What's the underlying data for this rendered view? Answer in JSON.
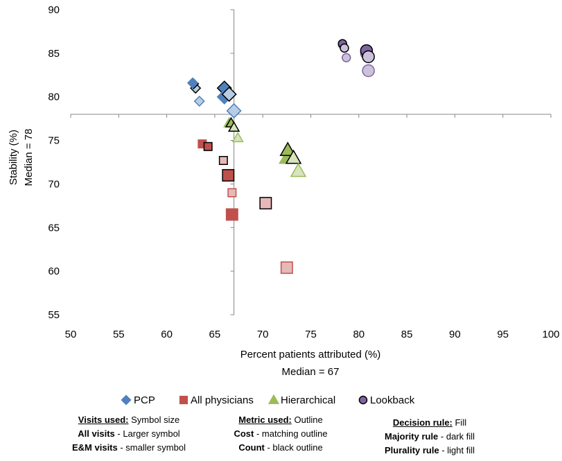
{
  "chart_data": {
    "type": "scatter",
    "xlabel": "Percent patients attributed (%)",
    "xlabel2": "Median = 67",
    "ylabel": "Stability (%)",
    "ylabel2": "Median = 78",
    "xlim": [
      50,
      100
    ],
    "ylim": [
      55,
      90
    ],
    "xticks": [
      50,
      55,
      60,
      65,
      70,
      75,
      80,
      85,
      90,
      95,
      100
    ],
    "yticks": [
      55,
      60,
      65,
      70,
      75,
      80,
      85,
      90
    ],
    "median_x": 67,
    "median_y": 78,
    "grid": false,
    "legend_position": "bottom",
    "colors": {
      "PCP": {
        "dark": "#4F81BD",
        "light": "#B8CCE4",
        "edge": "#4F81BD"
      },
      "All physicians": {
        "dark": "#C0504D",
        "light": "#E6B9B8",
        "edge": "#C0504D"
      },
      "Hierarchical": {
        "dark": "#9BBB59",
        "light": "#D7E4BD",
        "edge": "#9BBB59"
      },
      "Lookback": {
        "dark": "#8064A2",
        "light": "#CCC1DA",
        "edge": "#8064A2"
      }
    },
    "series": [
      {
        "name": "PCP",
        "marker": "diamond",
        "points": [
          {
            "x": 63.0,
            "y": 81.0,
            "size": "small",
            "fill": "light",
            "outline": "count"
          },
          {
            "x": 63.4,
            "y": 79.5,
            "size": "small",
            "fill": "light",
            "outline": "cost"
          },
          {
            "x": 62.8,
            "y": 81.5,
            "size": "small",
            "fill": "dark",
            "outline": "count"
          },
          {
            "x": 62.7,
            "y": 81.6,
            "size": "small",
            "fill": "dark",
            "outline": "cost"
          },
          {
            "x": 66.0,
            "y": 81.0,
            "size": "large",
            "fill": "dark",
            "outline": "count"
          },
          {
            "x": 66.0,
            "y": 80.0,
            "size": "large",
            "fill": "dark",
            "outline": "cost"
          },
          {
            "x": 66.5,
            "y": 80.3,
            "size": "large",
            "fill": "light",
            "outline": "count"
          },
          {
            "x": 67.0,
            "y": 78.4,
            "size": "large",
            "fill": "light",
            "outline": "cost"
          }
        ]
      },
      {
        "name": "All physicians",
        "marker": "square",
        "points": [
          {
            "x": 63.7,
            "y": 74.6,
            "size": "small",
            "fill": "dark",
            "outline": "cost"
          },
          {
            "x": 64.3,
            "y": 74.3,
            "size": "small",
            "fill": "dark",
            "outline": "count"
          },
          {
            "x": 65.9,
            "y": 72.7,
            "size": "small",
            "fill": "light",
            "outline": "count"
          },
          {
            "x": 66.8,
            "y": 69.0,
            "size": "small",
            "fill": "light",
            "outline": "cost"
          },
          {
            "x": 66.4,
            "y": 71.0,
            "size": "large",
            "fill": "dark",
            "outline": "count"
          },
          {
            "x": 66.8,
            "y": 66.5,
            "size": "large",
            "fill": "dark",
            "outline": "cost"
          },
          {
            "x": 70.3,
            "y": 67.8,
            "size": "large",
            "fill": "light",
            "outline": "count"
          },
          {
            "x": 72.5,
            "y": 60.4,
            "size": "large",
            "fill": "light",
            "outline": "cost"
          }
        ]
      },
      {
        "name": "Hierarchical",
        "marker": "triangle",
        "points": [
          {
            "x": 66.5,
            "y": 77.0,
            "size": "small",
            "fill": "dark",
            "outline": "cost"
          },
          {
            "x": 66.7,
            "y": 77.0,
            "size": "small",
            "fill": "dark",
            "outline": "count"
          },
          {
            "x": 67.0,
            "y": 76.5,
            "size": "small",
            "fill": "light",
            "outline": "count"
          },
          {
            "x": 67.4,
            "y": 75.3,
            "size": "small",
            "fill": "light",
            "outline": "cost"
          },
          {
            "x": 72.5,
            "y": 73.0,
            "size": "large",
            "fill": "dark",
            "outline": "cost"
          },
          {
            "x": 72.6,
            "y": 73.9,
            "size": "large",
            "fill": "dark",
            "outline": "count"
          },
          {
            "x": 73.2,
            "y": 73.0,
            "size": "large",
            "fill": "light",
            "outline": "count"
          },
          {
            "x": 73.7,
            "y": 71.5,
            "size": "large",
            "fill": "light",
            "outline": "cost"
          }
        ]
      },
      {
        "name": "Lookback",
        "marker": "circle",
        "points": [
          {
            "x": 78.3,
            "y": 86.0,
            "size": "small",
            "fill": "dark",
            "outline": "cost"
          },
          {
            "x": 78.3,
            "y": 86.1,
            "size": "small",
            "fill": "dark",
            "outline": "count"
          },
          {
            "x": 78.5,
            "y": 85.6,
            "size": "small",
            "fill": "light",
            "outline": "count"
          },
          {
            "x": 78.7,
            "y": 84.5,
            "size": "small",
            "fill": "light",
            "outline": "cost"
          },
          {
            "x": 80.8,
            "y": 85.0,
            "size": "large",
            "fill": "dark",
            "outline": "cost"
          },
          {
            "x": 80.8,
            "y": 85.3,
            "size": "large",
            "fill": "dark",
            "outline": "count"
          },
          {
            "x": 81.0,
            "y": 84.6,
            "size": "large",
            "fill": "light",
            "outline": "count"
          },
          {
            "x": 81.0,
            "y": 83.0,
            "size": "large",
            "fill": "light",
            "outline": "cost"
          }
        ]
      }
    ],
    "legend": [
      "PCP",
      "All physicians",
      "Hierarchical",
      "Lookback"
    ]
  },
  "notes": {
    "visits": {
      "title": "Visits used:",
      "title_rest": " Symbol size",
      "line1_bold": "All visits",
      "line1_rest": " - Larger symbol",
      "line2_bold": "E&M visits",
      "line2_rest": " - smaller symbol"
    },
    "metric": {
      "title": "Metric used:",
      "title_rest": " Outline",
      "line1_bold": "Cost",
      "line1_rest": " - matching outline",
      "line2_bold": "Count",
      "line2_rest": " - black outline"
    },
    "decision": {
      "title": "Decision rule:",
      "title_rest": " Fill",
      "line1_bold": "Majority rule",
      "line1_rest": " - dark fill",
      "line2_bold": "Plurality rule",
      "line2_rest": " - light fill"
    }
  }
}
